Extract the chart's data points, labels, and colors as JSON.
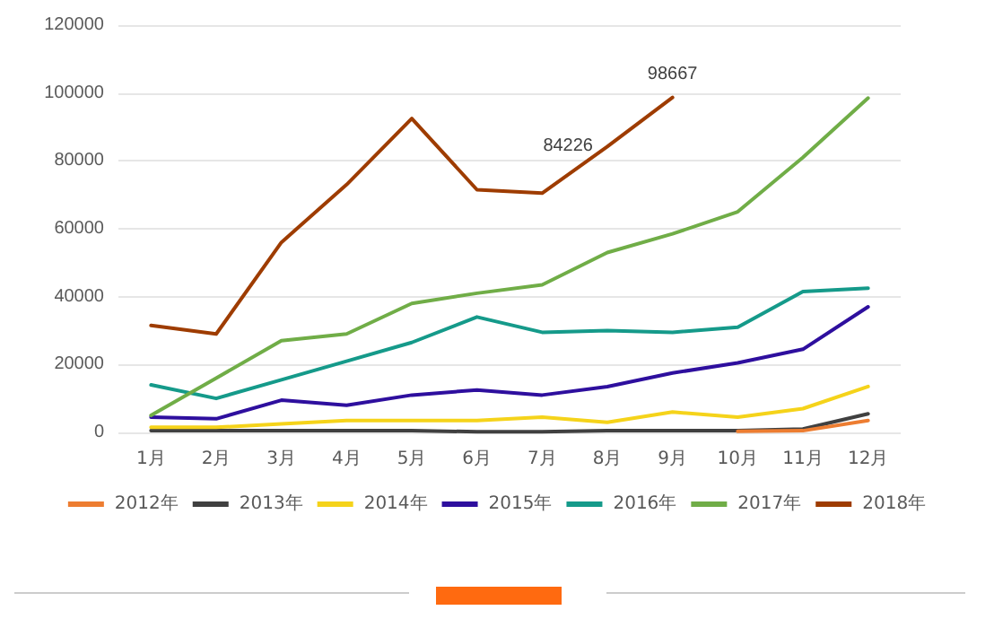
{
  "chart_data": {
    "type": "line",
    "categories": [
      "1月",
      "2月",
      "3月",
      "4月",
      "5月",
      "6月",
      "7月",
      "8月",
      "9月",
      "10月",
      "11月",
      "12月"
    ],
    "ylim": [
      0,
      120000
    ],
    "yticks": [
      0,
      20000,
      40000,
      60000,
      80000,
      100000,
      120000
    ],
    "grid": "y",
    "legend": "bottom",
    "marker": "none",
    "line_style": "solid",
    "series": [
      {
        "name": "2012年",
        "color": "#ed7d31",
        "values": [
          null,
          null,
          null,
          null,
          null,
          null,
          null,
          null,
          null,
          300,
          500,
          3500
        ]
      },
      {
        "name": "2013年",
        "color": "#404040",
        "values": [
          500,
          500,
          500,
          500,
          500,
          200,
          200,
          500,
          500,
          500,
          1000,
          5500
        ]
      },
      {
        "name": "2014年",
        "color": "#f5d31a",
        "values": [
          1500,
          1500,
          2500,
          3500,
          3500,
          3500,
          4500,
          3000,
          6000,
          4500,
          7000,
          13500
        ]
      },
      {
        "name": "2015年",
        "color": "#2e0f9e",
        "values": [
          4500,
          4000,
          9500,
          8000,
          11000,
          12500,
          11000,
          13500,
          17500,
          20500,
          24500,
          37000
        ]
      },
      {
        "name": "2016年",
        "color": "#159a8a",
        "values": [
          14000,
          10000,
          15500,
          21000,
          26500,
          34000,
          29500,
          30000,
          29500,
          31000,
          41500,
          42500
        ]
      },
      {
        "name": "2017年",
        "color": "#70ad47",
        "values": [
          5000,
          16000,
          27000,
          29000,
          38000,
          41000,
          43500,
          53000,
          58500,
          65000,
          81000,
          98500
        ]
      },
      {
        "name": "2018年",
        "color": "#9e3c00",
        "values": [
          31500,
          29000,
          56000,
          73000,
          92500,
          71500,
          70500,
          84226,
          98667,
          null,
          null,
          null
        ],
        "value_labels": [
          null,
          null,
          null,
          null,
          null,
          null,
          null,
          "84226",
          "98667",
          null,
          null,
          null
        ]
      }
    ]
  }
}
